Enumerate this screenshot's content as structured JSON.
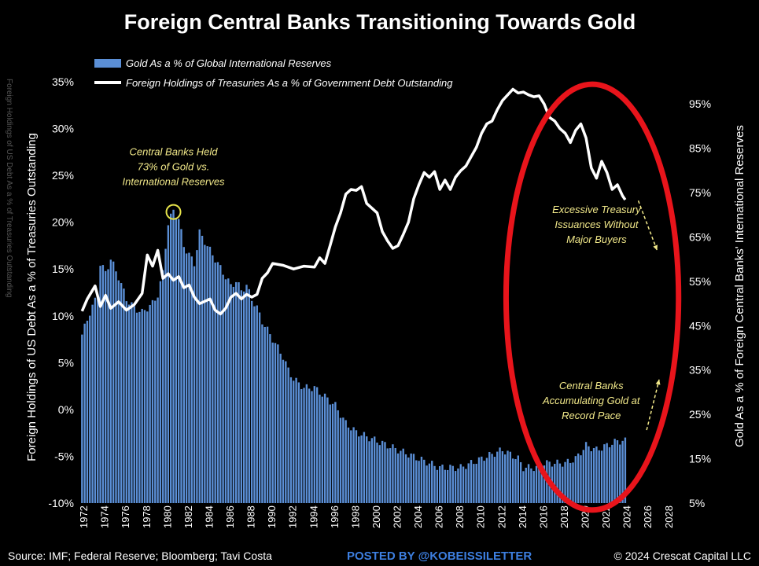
{
  "chart_data": {
    "type": "bar+line",
    "title": "Foreign Central Banks Transitioning Towards Gold",
    "legend": {
      "placement": "top-left",
      "entries": [
        "Gold As a % of Global International Reserves",
        "Foreign Holdings of Treasuries As a % of Government Debt Outstanding"
      ]
    },
    "ylabel_left": "Foreign Holdings of US Debt As a % of Treasuries Outstanding",
    "ylabel_right": "Gold As a % of Foreign Central Banks' International Reserves",
    "ghost_label_left": "Foreign Holdings of US Debt As a % of Treasuries Outstanding",
    "ylim_left": [
      -10,
      35
    ],
    "ylim_right": [
      5,
      100
    ],
    "yticks_left": [
      "35%",
      "30%",
      "25%",
      "20%",
      "15%",
      "10%",
      "5%",
      "0%",
      "-5%",
      "-10%"
    ],
    "yticks_right": [
      "95%",
      "85%",
      "75%",
      "65%",
      "55%",
      "45%",
      "35%",
      "25%",
      "15%",
      "5%"
    ],
    "xticks": [
      "1972",
      "1974",
      "1976",
      "1978",
      "1980",
      "1982",
      "1984",
      "1986",
      "1988",
      "1990",
      "1992",
      "1994",
      "1996",
      "1998",
      "2000",
      "2002",
      "2004",
      "2006",
      "2008",
      "2010",
      "2012",
      "2014",
      "2016",
      "2018",
      "2020",
      "2022",
      "2024",
      "2026",
      "2028"
    ],
    "xlim": [
      1971.5,
      2028.5
    ],
    "grid": false,
    "colors": {
      "bars": "#5b8fd6",
      "line": "#ffffff",
      "annotation": "#f2e98a",
      "ellipse": "#e8141b",
      "marker": "#e6e34a",
      "posted_by": "#3d7fe0"
    },
    "series": [
      {
        "name": "Gold As a % of Global International Reserves",
        "axis": "right",
        "type": "bar",
        "x_range": [
          1971.75,
          2023.75
        ],
        "x_step": 0.25,
        "anchors": [
          [
            1971.75,
            43
          ],
          [
            1972.5,
            48
          ],
          [
            1973.25,
            52
          ],
          [
            1973.5,
            59
          ],
          [
            1974.0,
            57
          ],
          [
            1974.5,
            60
          ],
          [
            1975.25,
            56
          ],
          [
            1976.0,
            51
          ],
          [
            1976.75,
            49
          ],
          [
            1977.5,
            48
          ],
          [
            1978.5,
            50
          ],
          [
            1979.0,
            52
          ],
          [
            1979.5,
            57
          ],
          [
            1979.75,
            63
          ],
          [
            1980.0,
            68
          ],
          [
            1980.5,
            71
          ],
          [
            1981.0,
            69
          ],
          [
            1981.5,
            63
          ],
          [
            1982.0,
            61
          ],
          [
            1982.5,
            59
          ],
          [
            1983.0,
            66
          ],
          [
            1983.5,
            64
          ],
          [
            1984.0,
            62
          ],
          [
            1984.5,
            60
          ],
          [
            1985.0,
            58
          ],
          [
            1985.5,
            56
          ],
          [
            1986.0,
            54
          ],
          [
            1986.5,
            55
          ],
          [
            1987.0,
            53
          ],
          [
            1987.5,
            54
          ],
          [
            1988.0,
            51
          ],
          [
            1988.5,
            49
          ],
          [
            1989.0,
            46
          ],
          [
            1989.5,
            44
          ],
          [
            1990.0,
            42
          ],
          [
            1990.5,
            40
          ],
          [
            1991.0,
            38
          ],
          [
            1991.5,
            35
          ],
          [
            1992.0,
            33
          ],
          [
            1993.0,
            31
          ],
          [
            1994.0,
            31
          ],
          [
            1995.0,
            29
          ],
          [
            1996.0,
            27
          ],
          [
            1997.0,
            23
          ],
          [
            1998.0,
            21
          ],
          [
            2000.0,
            19
          ],
          [
            2002.0,
            17
          ],
          [
            2004.0,
            15
          ],
          [
            2006.0,
            13
          ],
          [
            2008.0,
            13
          ],
          [
            2010.0,
            15
          ],
          [
            2012.0,
            17
          ],
          [
            2013.5,
            15
          ],
          [
            2014.0,
            13
          ],
          [
            2015.5,
            13
          ],
          [
            2016.0,
            14
          ],
          [
            2018.0,
            14
          ],
          [
            2019.0,
            15
          ],
          [
            2020.0,
            18
          ],
          [
            2021.0,
            17
          ],
          [
            2022.0,
            18
          ],
          [
            2023.0,
            19
          ],
          [
            2023.75,
            19
          ]
        ]
      },
      {
        "name": "Foreign Holdings of Treasuries As a % of Government Debt Outstanding",
        "axis": "left",
        "type": "line",
        "points": [
          [
            1971.75,
            10.5
          ],
          [
            1972.25,
            11.8
          ],
          [
            1973.0,
            13.2
          ],
          [
            1973.5,
            11.0
          ],
          [
            1974.0,
            12.2
          ],
          [
            1974.5,
            10.8
          ],
          [
            1975.25,
            11.5
          ],
          [
            1976.0,
            10.6
          ],
          [
            1976.75,
            11.2
          ],
          [
            1977.5,
            12.4
          ],
          [
            1978.0,
            16.5
          ],
          [
            1978.5,
            15.3
          ],
          [
            1979.0,
            17.0
          ],
          [
            1979.5,
            14.0
          ],
          [
            1980.0,
            14.5
          ],
          [
            1980.5,
            13.8
          ],
          [
            1981.0,
            14.2
          ],
          [
            1981.5,
            13.0
          ],
          [
            1982.0,
            13.3
          ],
          [
            1982.5,
            12.0
          ],
          [
            1983.0,
            11.3
          ],
          [
            1984.0,
            11.8
          ],
          [
            1984.5,
            10.6
          ],
          [
            1985.0,
            10.2
          ],
          [
            1985.5,
            10.8
          ],
          [
            1986.0,
            12.0
          ],
          [
            1986.5,
            12.4
          ],
          [
            1987.0,
            11.8
          ],
          [
            1987.5,
            12.3
          ],
          [
            1988.0,
            12.0
          ],
          [
            1988.5,
            12.3
          ],
          [
            1989.0,
            14.0
          ],
          [
            1989.5,
            14.6
          ],
          [
            1990.0,
            15.6
          ],
          [
            1991.0,
            15.4
          ],
          [
            1992.0,
            15.0
          ],
          [
            1993.0,
            15.3
          ],
          [
            1994.0,
            15.2
          ],
          [
            1994.5,
            16.2
          ],
          [
            1995.0,
            15.6
          ],
          [
            1995.5,
            17.5
          ],
          [
            1996.0,
            19.5
          ],
          [
            1996.5,
            21.0
          ],
          [
            1997.0,
            23.0
          ],
          [
            1997.5,
            23.5
          ],
          [
            1998.0,
            23.4
          ],
          [
            1998.5,
            23.8
          ],
          [
            1999.0,
            22.0
          ],
          [
            2000.0,
            21.0
          ],
          [
            2000.5,
            19.0
          ],
          [
            2001.0,
            18.0
          ],
          [
            2001.5,
            17.2
          ],
          [
            2002.0,
            17.5
          ],
          [
            2002.5,
            18.7
          ],
          [
            2003.0,
            20.0
          ],
          [
            2003.5,
            22.5
          ],
          [
            2004.0,
            24.0
          ],
          [
            2004.5,
            25.3
          ],
          [
            2005.0,
            24.8
          ],
          [
            2005.5,
            25.4
          ],
          [
            2006.0,
            23.5
          ],
          [
            2006.5,
            24.5
          ],
          [
            2007.0,
            23.5
          ],
          [
            2007.5,
            24.8
          ],
          [
            2008.0,
            25.5
          ],
          [
            2008.5,
            26.0
          ],
          [
            2009.0,
            27.0
          ],
          [
            2009.5,
            28.0
          ],
          [
            2010.0,
            29.5
          ],
          [
            2010.5,
            30.5
          ],
          [
            2011.0,
            30.8
          ],
          [
            2011.5,
            32.0
          ],
          [
            2012.0,
            33.0
          ],
          [
            2012.5,
            33.6
          ],
          [
            2013.0,
            34.2
          ],
          [
            2013.5,
            33.8
          ],
          [
            2014.0,
            33.9
          ],
          [
            2014.5,
            33.6
          ],
          [
            2015.0,
            33.4
          ],
          [
            2015.5,
            33.5
          ],
          [
            2016.0,
            32.6
          ],
          [
            2016.5,
            31.2
          ],
          [
            2017.0,
            30.8
          ],
          [
            2017.5,
            30.0
          ],
          [
            2018.0,
            29.5
          ],
          [
            2018.5,
            28.5
          ],
          [
            2019.0,
            29.8
          ],
          [
            2019.5,
            30.5
          ],
          [
            2020.0,
            29.0
          ],
          [
            2020.5,
            25.8
          ],
          [
            2021.0,
            24.7
          ],
          [
            2021.5,
            26.5
          ],
          [
            2022.0,
            25.3
          ],
          [
            2022.5,
            23.5
          ],
          [
            2023.0,
            24.0
          ],
          [
            2023.5,
            22.8
          ],
          [
            2023.75,
            22.4
          ]
        ]
      }
    ],
    "annotations": [
      {
        "text": [
          "Central Banks Held",
          "73% of Gold vs.",
          "International Reserves"
        ],
        "x": 1980.5,
        "y_right": 71
      },
      {
        "text": [
          "Excessive Treasury",
          "Issuances Without",
          "Major Buyers"
        ],
        "x": 2021.0,
        "y_left": 20.3
      },
      {
        "text": [
          "Central Banks",
          "Accumulating Gold at",
          "Record Pace"
        ],
        "x": 2020.5,
        "y_left": 1.5
      }
    ]
  },
  "footer": {
    "source": "Source: IMF; Federal Reserve; Bloomberg; Tavi Costa",
    "posted_by": "POSTED BY @KOBEISSILETTER",
    "copyright": "© 2024 Crescat Capital LLC"
  }
}
